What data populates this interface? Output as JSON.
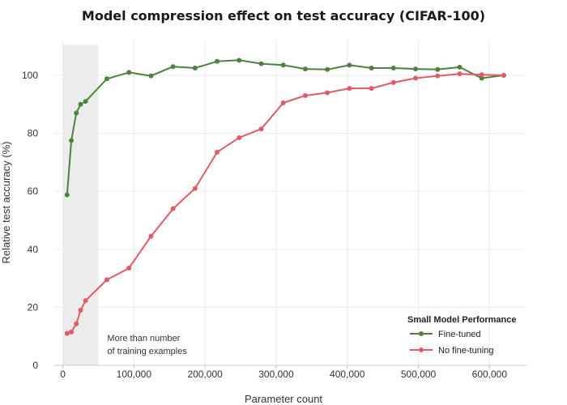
{
  "chart_data": {
    "type": "line",
    "title": "Model compression effect on test accuracy (CIFAR-100)",
    "xlabel": "Parameter count",
    "ylabel": "Relative test accuracy (%)",
    "xlim": [
      -12000,
      652000
    ],
    "ylim": [
      0,
      112
    ],
    "xticks": [
      0,
      100000,
      200000,
      300000,
      400000,
      500000,
      600000
    ],
    "xtick_labels": [
      "0",
      "100,000",
      "200,000",
      "300,000",
      "400,000",
      "500,000",
      "600,000"
    ],
    "yticks": [
      0,
      20,
      40,
      60,
      80,
      100
    ],
    "ytick_labels": [
      "0",
      "20",
      "40",
      "60",
      "80",
      "100"
    ],
    "grid": true,
    "legend": {
      "title": "Small Model Performance",
      "position": "bottom-right"
    },
    "shaded_region": {
      "x0": 0,
      "x1": 50000,
      "color": "#ececec",
      "label": [
        "More than number",
        "of training examples"
      ]
    },
    "series": [
      {
        "name": "Fine-tuned",
        "color": "#4f8140",
        "x": [
          6000,
          12000,
          19000,
          25000,
          32000,
          62000,
          93000,
          124000,
          155000,
          186000,
          217000,
          248000,
          279000,
          310000,
          341000,
          372000,
          403000,
          434000,
          465000,
          496000,
          527000,
          558000,
          589000,
          620000
        ],
        "y": [
          58.8,
          77.5,
          87.0,
          90.0,
          91.0,
          98.8,
          101.0,
          99.8,
          103.0,
          102.5,
          104.8,
          105.2,
          104.0,
          103.5,
          102.2,
          102.0,
          103.5,
          102.5,
          102.5,
          102.2,
          102.0,
          102.8,
          99.0,
          100.0
        ]
      },
      {
        "name": "No fine-tuning",
        "color": "#e05b68",
        "x": [
          6000,
          12000,
          19000,
          25000,
          32000,
          62000,
          93000,
          124000,
          155000,
          186000,
          217000,
          248000,
          279000,
          310000,
          341000,
          372000,
          403000,
          434000,
          465000,
          496000,
          527000,
          558000,
          589000,
          620000
        ],
        "y": [
          11.0,
          11.5,
          14.3,
          19.0,
          22.3,
          29.5,
          33.5,
          44.5,
          54.0,
          61.0,
          73.5,
          78.5,
          81.5,
          90.5,
          93.0,
          94.0,
          95.5,
          95.5,
          97.5,
          99.0,
          99.8,
          100.5,
          100.2,
          100.0
        ]
      }
    ]
  }
}
